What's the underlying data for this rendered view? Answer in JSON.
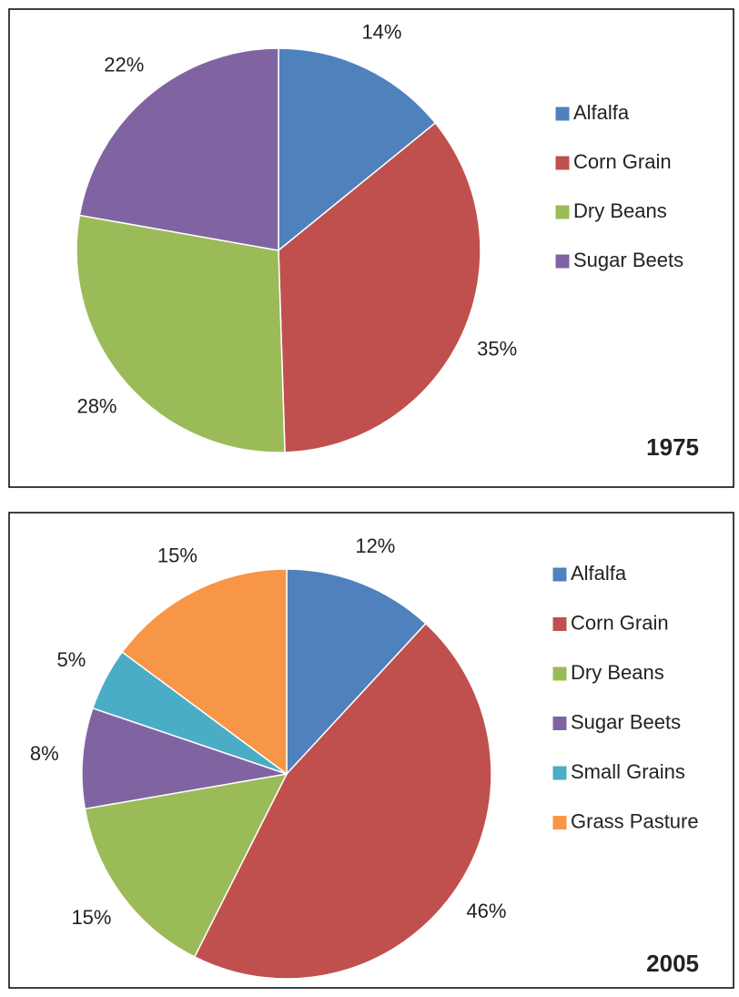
{
  "chart_data": [
    {
      "type": "pie",
      "title": "1975",
      "categories": [
        "Alfalfa",
        "Corn Grain",
        "Dry Beans",
        "Sugar Beets"
      ],
      "values": [
        14,
        35,
        28,
        22
      ],
      "value_labels": [
        "14%",
        "35%",
        "28%",
        "22%"
      ],
      "colors": [
        "#4f81bd",
        "#c0504d",
        "#9bbb59",
        "#8064a2"
      ]
    },
    {
      "type": "pie",
      "title": "2005",
      "categories": [
        "Alfalfa",
        "Corn Grain",
        "Dry Beans",
        "Sugar Beets",
        "Small Grains",
        "Grass Pasture"
      ],
      "values": [
        12,
        46,
        15,
        8,
        5,
        15
      ],
      "value_labels": [
        "12%",
        "46%",
        "15%",
        "8%",
        "5%",
        "15%"
      ],
      "colors": [
        "#4f81bd",
        "#c0504d",
        "#9bbb59",
        "#8064a2",
        "#4bacc6",
        "#f79646"
      ]
    }
  ]
}
